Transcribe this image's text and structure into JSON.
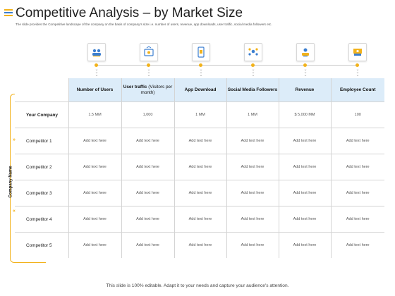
{
  "header": {
    "title": "Competitive Analysis – by Market Size",
    "subtitle": "The slide provides the Competitive landscape of the company on the basis of company's size i.e. number of users, revenue, app downloads, user traffic, social media followers etc."
  },
  "icons": [
    "users-icon",
    "traffic-icon",
    "app-download-icon",
    "social-media-icon",
    "revenue-icon",
    "employee-count-icon"
  ],
  "colors": {
    "accent": "#f2b21b",
    "header_bg": "#dcecf9",
    "icon_blue": "#3c7fd0"
  },
  "table": {
    "headers": [
      {
        "bold": "Number of Users",
        "light": ""
      },
      {
        "bold": "User traffic",
        "light": " (Visitors per month)"
      },
      {
        "bold": "App Download",
        "light": ""
      },
      {
        "bold": "Social Media Followers",
        "light": ""
      },
      {
        "bold": "Revenue",
        "light": ""
      },
      {
        "bold": "Employee Count",
        "light": ""
      }
    ],
    "rows": [
      {
        "label": "Your Company",
        "cells": [
          "1.5 MM",
          "1,000",
          "1 MM",
          "1 MM",
          "$ 5,000 MM",
          "100"
        ]
      },
      {
        "label": "Competitor 1",
        "cells": [
          "Add text here",
          "Add text here",
          "Add text here",
          "Add text here",
          "Add text here",
          "Add text here"
        ]
      },
      {
        "label": "Competitor 2",
        "cells": [
          "Add text here",
          "Add text here",
          "Add text here",
          "Add text here",
          "Add text here",
          "Add text here"
        ]
      },
      {
        "label": "Competitor 3",
        "cells": [
          "Add text here",
          "Add text here",
          "Add text here",
          "Add text here",
          "Add text here",
          "Add text here"
        ]
      },
      {
        "label": "Competitor 4",
        "cells": [
          "Add text here",
          "Add text here",
          "Add text here",
          "Add text here",
          "Add text here",
          "Add text here"
        ]
      },
      {
        "label": "Competitor 5",
        "cells": [
          "Add text here",
          "Add text here",
          "Add text here",
          "Add text here",
          "Add text here",
          "Add text here"
        ]
      }
    ]
  },
  "side_label": "Company Name",
  "footer": "This slide is 100% editable. Adapt it to your needs and capture your audience's attention."
}
